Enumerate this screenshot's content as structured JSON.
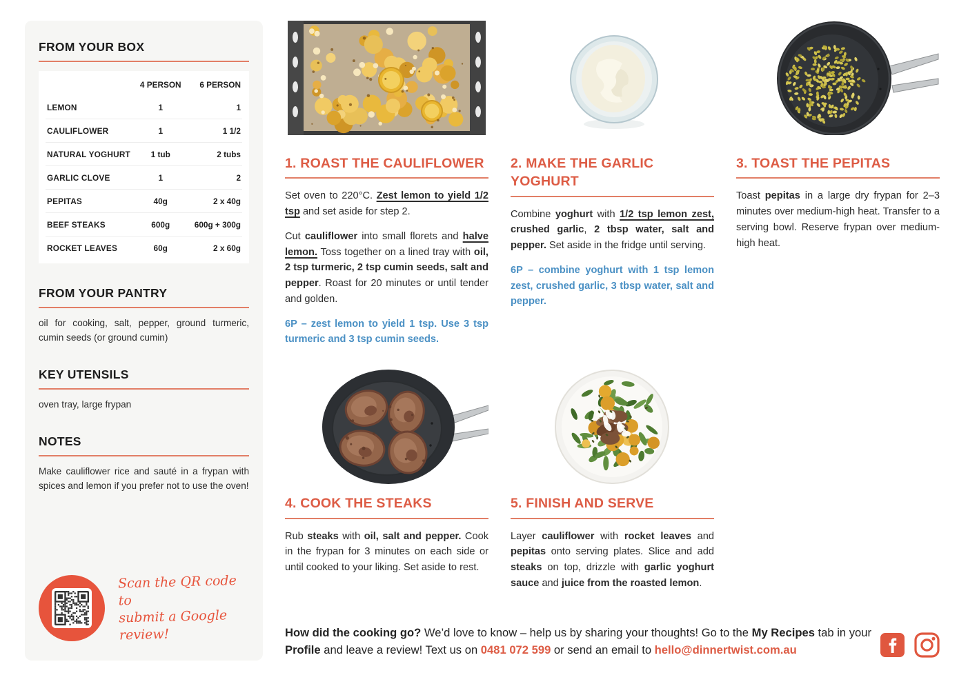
{
  "colors": {
    "accent": "#dd5c45",
    "rule": "#e27e66",
    "blue": "#4a90c4",
    "qr_circle": "#e7543c"
  },
  "sidebar": {
    "box": {
      "title": "FROM YOUR BOX",
      "col4": "4 PERSON",
      "col6": "6 PERSON",
      "rows": [
        {
          "name": "LEMON",
          "p4": "1",
          "p6": "1"
        },
        {
          "name": "CAULIFLOWER",
          "p4": "1",
          "p6": "1 1/2"
        },
        {
          "name": "NATURAL YOGHURT",
          "p4": "1 tub",
          "p6": "2 tubs"
        },
        {
          "name": "GARLIC CLOVE",
          "p4": "1",
          "p6": "2"
        },
        {
          "name": "PEPITAS",
          "p4": "40g",
          "p6": "2 x 40g"
        },
        {
          "name": "BEEF STEAKS",
          "p4": "600g",
          "p6": "600g + 300g"
        },
        {
          "name": "ROCKET LEAVES",
          "p4": "60g",
          "p6": "2 x 60g"
        }
      ]
    },
    "pantry": {
      "title": "FROM YOUR PANTRY",
      "text": "oil for cooking, salt, pepper, ground turmeric, cumin seeds (or ground cumin)"
    },
    "utensils": {
      "title": "KEY UTENSILS",
      "text": "oven tray, large frypan"
    },
    "notes": {
      "title": "NOTES",
      "text": "Make cauliflower rice and sauté in a frypan with spices and lemon if you prefer not to use the oven!"
    },
    "qr": {
      "line1": "Scan the QR code to",
      "line2": "submit a Google review!"
    }
  },
  "steps": [
    {
      "title": "1. ROAST THE CAULIFLOWER",
      "photo": "roasted cauliflower and lemon on oven tray",
      "paras": [
        {
          "kind": "normal",
          "segs": [
            [
              "Set oven to 220°C. "
            ],
            [
              "Zest lemon to yield 1/2 tsp",
              "bu"
            ],
            [
              " and set aside for step 2."
            ]
          ]
        },
        {
          "kind": "normal",
          "segs": [
            [
              "Cut "
            ],
            [
              "cauliflower",
              "b"
            ],
            [
              " into small florets and "
            ],
            [
              "halve lemon.",
              "bu"
            ],
            [
              " Toss together on a lined tray with "
            ],
            [
              "oil, 2 tsp turmeric, 2 tsp cumin seeds, salt and pepper",
              "b"
            ],
            [
              ". Roast for 20 minutes or until tender and golden."
            ]
          ]
        },
        {
          "kind": "sixp",
          "segs": [
            [
              "6P – zest lemon to yield 1 tsp. Use 3 tsp turmeric and 3 tsp cumin seeds."
            ]
          ]
        }
      ]
    },
    {
      "title": "2. MAKE THE GARLIC YOGHURT",
      "photo": "glass bowl of yoghurt",
      "paras": [
        {
          "kind": "normal",
          "segs": [
            [
              "Combine "
            ],
            [
              "yoghurt",
              "b"
            ],
            [
              " with "
            ],
            [
              "1/2 tsp lemon zest,",
              "bu"
            ],
            [
              " "
            ],
            [
              "crushed garlic",
              "b"
            ],
            [
              ", "
            ],
            [
              "2 tbsp water, salt and pepper.",
              "b"
            ],
            [
              " Set aside in the fridge until serving."
            ]
          ]
        },
        {
          "kind": "sixp",
          "segs": [
            [
              "6P – combine yoghurt with 1 tsp lemon zest, crushed garlic, 3 tbsp water, salt and pepper."
            ]
          ]
        }
      ]
    },
    {
      "title": "3. TOAST THE PEPITAS",
      "photo": "pepitas toasting in dark frypan",
      "paras": [
        {
          "kind": "normal",
          "segs": [
            [
              "Toast "
            ],
            [
              "pepitas",
              "b"
            ],
            [
              " in a large dry frypan for 2–3 minutes over medium-high heat. Transfer to a serving bowl. Reserve frypan over medium-high heat."
            ]
          ]
        }
      ]
    },
    {
      "title": "4. COOK THE STEAKS",
      "photo": "beef steaks searing in frypan",
      "paras": [
        {
          "kind": "normal",
          "segs": [
            [
              "Rub "
            ],
            [
              "steaks",
              "b"
            ],
            [
              " with "
            ],
            [
              "oil, salt and pepper.",
              "b"
            ],
            [
              " Cook in the frypan for 3 minutes on each side or until cooked to your liking. Set aside to rest."
            ]
          ]
        }
      ]
    },
    {
      "title": "5. FINISH AND SERVE",
      "photo": "finished plate with cauliflower, rocket, steak and yoghurt",
      "paras": [
        {
          "kind": "normal",
          "segs": [
            [
              "Layer "
            ],
            [
              "cauliflower",
              "b"
            ],
            [
              " with "
            ],
            [
              "rocket leaves",
              "b"
            ],
            [
              " and "
            ],
            [
              "pepitas",
              "b"
            ],
            [
              " onto serving plates. Slice and add "
            ],
            [
              "steaks",
              "b"
            ],
            [
              " on top, drizzle with "
            ],
            [
              "garlic yoghurt sauce",
              "b"
            ],
            [
              " and "
            ],
            [
              "juice from the roasted lemon",
              "b"
            ],
            [
              "."
            ]
          ]
        }
      ]
    }
  ],
  "footer": {
    "paras": [
      {
        "kind": "normal",
        "segs": [
          [
            "How did the cooking go?",
            "b"
          ],
          [
            " We’d love to know – help us by sharing your thoughts! Go to the "
          ],
          [
            "My Recipes",
            "b"
          ],
          [
            " tab in your "
          ],
          [
            "Profile",
            "b"
          ],
          [
            " and leave a review! Text us on "
          ],
          [
            "0481 072 599",
            "ba"
          ],
          [
            " or send an email to "
          ],
          [
            "hello@dinnertwist.com.au",
            "ba"
          ]
        ]
      }
    ],
    "icons": [
      "facebook-icon",
      "instagram-icon"
    ]
  }
}
